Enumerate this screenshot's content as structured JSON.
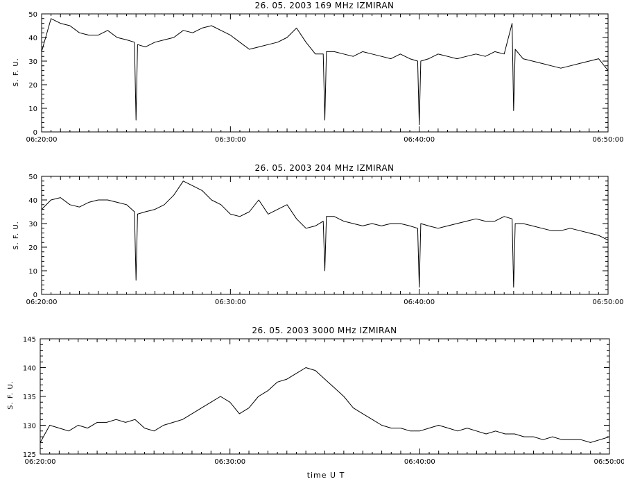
{
  "chart_data": [
    {
      "type": "line",
      "title": "26.  05.  2003    169 MHz    IZMIRAN",
      "ylabel": "S. F. U.",
      "xlabel": "",
      "xlim": [
        "06:20:00",
        "06:50:00"
      ],
      "ylim": [
        0,
        50
      ],
      "xticks": [
        "06:20:00",
        "06:30:00",
        "06:40:00",
        "06:50:00"
      ],
      "yticks": [
        0,
        10,
        20,
        30,
        40,
        50
      ],
      "grid": false,
      "series": [
        {
          "color": "#000000",
          "x": [
            "06:20:00",
            "06:20:30",
            "06:21:00",
            "06:21:30",
            "06:22:00",
            "06:22:30",
            "06:23:00",
            "06:23:30",
            "06:24:00",
            "06:24:30",
            "06:24:55",
            "06:25:00",
            "06:25:05",
            "06:25:30",
            "06:26:00",
            "06:26:30",
            "06:27:00",
            "06:27:30",
            "06:28:00",
            "06:28:30",
            "06:29:00",
            "06:29:30",
            "06:30:00",
            "06:30:30",
            "06:31:00",
            "06:31:30",
            "06:32:00",
            "06:32:30",
            "06:33:00",
            "06:33:30",
            "06:34:00",
            "06:34:30",
            "06:34:55",
            "06:35:00",
            "06:35:05",
            "06:35:30",
            "06:36:00",
            "06:36:30",
            "06:37:00",
            "06:37:30",
            "06:38:00",
            "06:38:30",
            "06:39:00",
            "06:39:30",
            "06:39:55",
            "06:40:00",
            "06:40:05",
            "06:40:30",
            "06:41:00",
            "06:41:30",
            "06:42:00",
            "06:42:30",
            "06:43:00",
            "06:43:30",
            "06:44:00",
            "06:44:30",
            "06:44:55",
            "06:45:00",
            "06:45:05",
            "06:45:30",
            "06:46:00",
            "06:46:30",
            "06:47:00",
            "06:47:30",
            "06:48:00",
            "06:48:30",
            "06:49:00",
            "06:49:30",
            "06:50:00"
          ],
          "y": [
            34,
            48,
            46,
            45,
            42,
            41,
            41,
            43,
            40,
            39,
            38,
            5,
            37,
            36,
            38,
            39,
            40,
            43,
            42,
            44,
            45,
            43,
            41,
            38,
            35,
            36,
            37,
            38,
            40,
            44,
            38,
            33,
            33,
            5,
            34,
            34,
            33,
            32,
            34,
            33,
            32,
            31,
            33,
            31,
            30,
            3,
            30,
            31,
            33,
            32,
            31,
            32,
            33,
            32,
            34,
            33,
            46,
            9,
            35,
            31,
            30,
            29,
            28,
            27,
            28,
            29,
            30,
            31,
            26
          ]
        }
      ]
    },
    {
      "type": "line",
      "title": "26.  05.  2003    204 MHz    IZMIRAN",
      "ylabel": "S. F. U.",
      "xlabel": "",
      "xlim": [
        "06:20:00",
        "06:50:00"
      ],
      "ylim": [
        0,
        50
      ],
      "xticks": [
        "06:20:00",
        "06:30:00",
        "06:40:00",
        "06:50:00"
      ],
      "yticks": [
        0,
        10,
        20,
        30,
        40,
        50
      ],
      "grid": false,
      "series": [
        {
          "color": "#000000",
          "x": [
            "06:20:00",
            "06:20:30",
            "06:21:00",
            "06:21:30",
            "06:22:00",
            "06:22:30",
            "06:23:00",
            "06:23:30",
            "06:24:00",
            "06:24:30",
            "06:24:55",
            "06:25:00",
            "06:25:05",
            "06:25:30",
            "06:26:00",
            "06:26:30",
            "06:27:00",
            "06:27:30",
            "06:28:00",
            "06:28:30",
            "06:29:00",
            "06:29:30",
            "06:30:00",
            "06:30:30",
            "06:31:00",
            "06:31:30",
            "06:32:00",
            "06:32:30",
            "06:33:00",
            "06:33:30",
            "06:34:00",
            "06:34:30",
            "06:34:55",
            "06:35:00",
            "06:35:05",
            "06:35:30",
            "06:36:00",
            "06:36:30",
            "06:37:00",
            "06:37:30",
            "06:38:00",
            "06:38:30",
            "06:39:00",
            "06:39:30",
            "06:39:55",
            "06:40:00",
            "06:40:05",
            "06:40:30",
            "06:41:00",
            "06:41:30",
            "06:42:00",
            "06:42:30",
            "06:43:00",
            "06:43:30",
            "06:44:00",
            "06:44:30",
            "06:44:55",
            "06:45:00",
            "06:45:05",
            "06:45:30",
            "06:46:00",
            "06:46:30",
            "06:47:00",
            "06:47:30",
            "06:48:00",
            "06:48:30",
            "06:49:00",
            "06:49:30",
            "06:50:00"
          ],
          "y": [
            36,
            40,
            41,
            38,
            37,
            39,
            40,
            40,
            39,
            38,
            35,
            6,
            34,
            35,
            36,
            38,
            42,
            48,
            46,
            44,
            40,
            38,
            34,
            33,
            35,
            40,
            34,
            36,
            38,
            32,
            28,
            29,
            31,
            10,
            33,
            33,
            31,
            30,
            29,
            30,
            29,
            30,
            30,
            29,
            28,
            3,
            30,
            29,
            28,
            29,
            30,
            31,
            32,
            31,
            31,
            33,
            32,
            3,
            30,
            30,
            29,
            28,
            27,
            27,
            28,
            27,
            26,
            25,
            23
          ]
        }
      ]
    },
    {
      "type": "line",
      "title": "26.  05.  2003    3000 MHz    IZMIRAN",
      "ylabel": "S. F. U.",
      "xlabel": "time  U T",
      "xlim": [
        "06:20:00",
        "06:50:00"
      ],
      "ylim": [
        125,
        145
      ],
      "xticks": [
        "06:20:00",
        "06:30:00",
        "06:40:00",
        "06:50:00"
      ],
      "yticks": [
        125,
        130,
        135,
        140,
        145
      ],
      "grid": false,
      "series": [
        {
          "color": "#000000",
          "x": [
            "06:20:00",
            "06:20:30",
            "06:21:00",
            "06:21:30",
            "06:22:00",
            "06:22:30",
            "06:23:00",
            "06:23:30",
            "06:24:00",
            "06:24:30",
            "06:25:00",
            "06:25:30",
            "06:26:00",
            "06:26:30",
            "06:27:00",
            "06:27:30",
            "06:28:00",
            "06:28:30",
            "06:29:00",
            "06:29:30",
            "06:30:00",
            "06:30:30",
            "06:31:00",
            "06:31:30",
            "06:32:00",
            "06:32:30",
            "06:33:00",
            "06:33:30",
            "06:34:00",
            "06:34:30",
            "06:35:00",
            "06:35:30",
            "06:36:00",
            "06:36:30",
            "06:37:00",
            "06:37:30",
            "06:38:00",
            "06:38:30",
            "06:39:00",
            "06:39:30",
            "06:40:00",
            "06:40:30",
            "06:41:00",
            "06:41:30",
            "06:42:00",
            "06:42:30",
            "06:43:00",
            "06:43:30",
            "06:44:00",
            "06:44:30",
            "06:45:00",
            "06:45:30",
            "06:46:00",
            "06:46:30",
            "06:47:00",
            "06:47:30",
            "06:48:00",
            "06:48:30",
            "06:49:00",
            "06:49:30",
            "06:50:00"
          ],
          "y": [
            127,
            130,
            129.5,
            129,
            130,
            129.5,
            130.5,
            130.5,
            131,
            130.5,
            131,
            129.5,
            129,
            130,
            130.5,
            131,
            132,
            133,
            134,
            135,
            134,
            132,
            133,
            135,
            136,
            137.5,
            138,
            139,
            140,
            139.5,
            138,
            136.5,
            135,
            133,
            132,
            131,
            130,
            129.5,
            129.5,
            129,
            129,
            129.5,
            130,
            129.5,
            129,
            129.5,
            129,
            128.5,
            129,
            128.5,
            128.5,
            128,
            128,
            127.5,
            128,
            127.5,
            127.5,
            127.5,
            127,
            127.5,
            128
          ]
        }
      ]
    }
  ]
}
